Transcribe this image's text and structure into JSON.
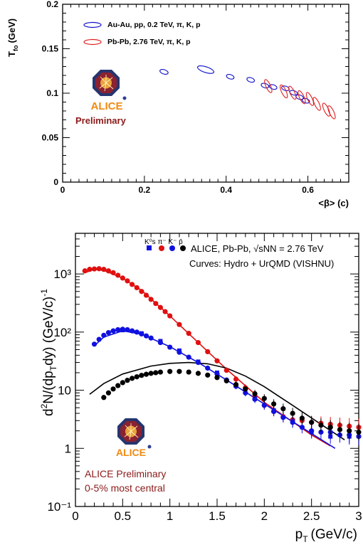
{
  "chart_data": [
    {
      "type": "scatter",
      "ylabel": "T",
      "ylabel_sub": "fo",
      "ylabel_unit": "(GeV)",
      "xlabel": "<β> (c)",
      "xlim": [
        0,
        0.7
      ],
      "ylim": [
        0,
        0.2
      ],
      "x_ticks": [
        "0",
        "0.2",
        "0.4",
        "0.6"
      ],
      "y_ticks": [
        "0",
        "0.05",
        "0.1",
        "0.15",
        "0.2"
      ],
      "legend_position": "top-left",
      "series": [
        {
          "name": "Au-Au, pp, 0.2 TeV, π, K, p",
          "color": "#1010c8",
          "marker": "ellipse",
          "points": [
            {
              "x": 0.248,
              "y": 0.124
            },
            {
              "x": 0.35,
              "y": 0.1265
            },
            {
              "x": 0.41,
              "y": 0.1185
            },
            {
              "x": 0.46,
              "y": 0.115
            },
            {
              "x": 0.495,
              "y": 0.1085
            },
            {
              "x": 0.515,
              "y": 0.107
            },
            {
              "x": 0.545,
              "y": 0.1055
            },
            {
              "x": 0.565,
              "y": 0.1005
            },
            {
              "x": 0.58,
              "y": 0.0955
            },
            {
              "x": 0.595,
              "y": 0.0915
            }
          ]
        },
        {
          "name": "Pb-Pb, 2.76 TeV, π, K, p",
          "color": "#e02020",
          "marker": "ellipse",
          "points": [
            {
              "x": 0.503,
              "y": 0.108
            },
            {
              "x": 0.541,
              "y": 0.102
            },
            {
              "x": 0.562,
              "y": 0.1005
            },
            {
              "x": 0.585,
              "y": 0.0955
            },
            {
              "x": 0.605,
              "y": 0.0935
            },
            {
              "x": 0.622,
              "y": 0.088
            },
            {
              "x": 0.645,
              "y": 0.0815
            },
            {
              "x": 0.658,
              "y": 0.0785
            }
          ]
        }
      ],
      "annotation": "Preliminary",
      "logo_text": "ALICE"
    },
    {
      "type": "scatter",
      "xlabel": "p",
      "xlabel_sub": "T",
      "xlabel_unit": "(GeV/c)",
      "ylabel": "d²N/(dp_T dy) (GeV/c)⁻¹",
      "x_ticks": [
        "0",
        "0.5",
        "1",
        "1.5",
        "2",
        "2.5",
        "3"
      ],
      "xlim": [
        0,
        3
      ],
      "y_scale": "log",
      "ylim": [
        0.1,
        5000
      ],
      "y_ticks": [
        "10⁻¹",
        "1",
        "10",
        "10²",
        "10³"
      ],
      "legend_position": "top-right",
      "legend": {
        "particles": "K⁰s π⁻ K⁻ p̄",
        "entry": "ALICE, Pb-Pb, √sNN = 2.76 TeV",
        "curves": "Curves: Hydro + UrQMD (VISHNU)"
      },
      "annotation_lines": [
        "ALICE Preliminary",
        "0-5% most central"
      ],
      "logo_text": "ALICE",
      "series": [
        {
          "name": "π⁻",
          "color": "#e01010",
          "points": [
            [
              0.1,
              1130
            ],
            [
              0.15,
              1200
            ],
            [
              0.2,
              1220
            ],
            [
              0.25,
              1230
            ],
            [
              0.3,
              1200
            ],
            [
              0.35,
              1130
            ],
            [
              0.4,
              1050
            ],
            [
              0.45,
              950
            ],
            [
              0.5,
              850
            ],
            [
              0.55,
              760
            ],
            [
              0.6,
              660
            ],
            [
              0.65,
              580
            ],
            [
              0.7,
              500
            ],
            [
              0.75,
              430
            ],
            [
              0.8,
              365
            ],
            [
              0.85,
              310
            ],
            [
              0.9,
              265
            ],
            [
              0.95,
              225
            ],
            [
              1.0,
              190
            ],
            [
              1.1,
              135
            ],
            [
              1.2,
              95
            ],
            [
              1.3,
              66
            ],
            [
              1.4,
              46
            ],
            [
              1.5,
              32
            ],
            [
              1.6,
              22
            ],
            [
              1.7,
              15.5
            ],
            [
              1.8,
              11
            ],
            [
              1.9,
              7.8
            ],
            [
              2.0,
              5.5
            ],
            [
              2.1,
              4.3
            ],
            [
              2.2,
              3.5
            ],
            [
              2.3,
              3.1
            ],
            [
              2.4,
              3.0
            ],
            [
              2.5,
              2.8
            ],
            [
              2.6,
              2.7
            ],
            [
              2.7,
              2.6
            ],
            [
              2.8,
              2.5
            ],
            [
              2.9,
              2.4
            ],
            [
              3.0,
              2.3
            ]
          ],
          "curve": [
            [
              0.1,
              1050
            ],
            [
              0.2,
              1200
            ],
            [
              0.3,
              1150
            ],
            [
              0.5,
              850
            ],
            [
              0.7,
              520
            ],
            [
              1.0,
              190
            ],
            [
              1.3,
              66
            ],
            [
              1.6,
              23
            ],
            [
              2.0,
              6.2
            ],
            [
              2.5,
              1.7
            ],
            [
              2.7,
              1.1
            ]
          ]
        },
        {
          "name": "K⁻",
          "color": "#1010e0",
          "points": [
            [
              0.2,
              62
            ],
            [
              0.25,
              75
            ],
            [
              0.3,
              88
            ],
            [
              0.35,
              98
            ],
            [
              0.4,
              105
            ],
            [
              0.45,
              110
            ],
            [
              0.5,
              112
            ],
            [
              0.55,
              110
            ],
            [
              0.6,
              105
            ],
            [
              0.65,
              100
            ],
            [
              0.7,
              93
            ],
            [
              0.75,
              86
            ],
            [
              0.8,
              79
            ],
            [
              0.9,
              66
            ],
            [
              1.0,
              55
            ],
            [
              1.1,
              45
            ],
            [
              1.2,
              37
            ],
            [
              1.3,
              30
            ],
            [
              1.4,
              24
            ],
            [
              1.5,
              19
            ],
            [
              1.6,
              15
            ],
            [
              1.7,
              11.7
            ],
            [
              1.8,
              9.0
            ],
            [
              1.9,
              7.0
            ],
            [
              2.0,
              5.5
            ],
            [
              2.1,
              4.3
            ],
            [
              2.2,
              3.4
            ],
            [
              2.3,
              2.8
            ],
            [
              2.4,
              2.3
            ],
            [
              2.5,
              2.0
            ],
            [
              2.6,
              1.9
            ],
            [
              2.7,
              1.9
            ],
            [
              2.8,
              1.7
            ],
            [
              2.9,
              1.7
            ],
            [
              3.0,
              1.6
            ]
          ],
          "curve": [
            [
              0.2,
              58
            ],
            [
              0.3,
              82
            ],
            [
              0.5,
              105
            ],
            [
              0.7,
              92
            ],
            [
              1.0,
              56
            ],
            [
              1.3,
              30
            ],
            [
              1.6,
              15
            ],
            [
              2.0,
              5.8
            ],
            [
              2.5,
              1.8
            ],
            [
              2.75,
              1.0
            ]
          ]
        },
        {
          "name": "K⁰s",
          "color": "#1010e0",
          "points": [
            [
              0.5,
              108
            ],
            [
              0.7,
              95
            ],
            [
              0.9,
              70
            ],
            [
              1.1,
              48
            ],
            [
              1.3,
              31
            ],
            [
              1.5,
              20
            ],
            [
              1.7,
              12
            ],
            [
              1.9,
              7.2
            ],
            [
              2.1,
              4.5
            ],
            [
              2.3,
              2.9
            ],
            [
              2.5,
              1.9
            ],
            [
              2.7,
              1.6
            ],
            [
              2.9,
              1.6
            ]
          ]
        },
        {
          "name": "p̄",
          "color": "#000000",
          "points": [
            [
              0.3,
              7.5
            ],
            [
              0.35,
              9
            ],
            [
              0.4,
              10.5
            ],
            [
              0.45,
              12
            ],
            [
              0.5,
              13.5
            ],
            [
              0.55,
              14.8
            ],
            [
              0.6,
              16
            ],
            [
              0.65,
              17
            ],
            [
              0.7,
              18
            ],
            [
              0.75,
              18.8
            ],
            [
              0.8,
              19.5
            ],
            [
              0.85,
              20
            ],
            [
              0.9,
              20.5
            ],
            [
              1.0,
              21
            ],
            [
              1.1,
              21
            ],
            [
              1.2,
              20.5
            ],
            [
              1.3,
              19.5
            ],
            [
              1.4,
              18.2
            ],
            [
              1.5,
              16.5
            ],
            [
              1.6,
              14.5
            ],
            [
              1.7,
              12.5
            ],
            [
              1.8,
              10.5
            ],
            [
              1.9,
              8.7
            ],
            [
              2.0,
              7.2
            ],
            [
              2.1,
              5.8
            ],
            [
              2.2,
              4.8
            ],
            [
              2.3,
              4.0
            ],
            [
              2.4,
              3.3
            ],
            [
              2.5,
              2.8
            ],
            [
              2.6,
              2.5
            ],
            [
              2.7,
              2.3
            ],
            [
              2.8,
              2.1
            ],
            [
              2.9,
              2.0
            ],
            [
              3.0,
              1.9
            ]
          ],
          "curve": [
            [
              0.15,
              8.5
            ],
            [
              0.3,
              13
            ],
            [
              0.5,
              19
            ],
            [
              0.8,
              26
            ],
            [
              1.0,
              29
            ],
            [
              1.2,
              30
            ],
            [
              1.4,
              28.5
            ],
            [
              1.6,
              24
            ],
            [
              1.8,
              17.5
            ],
            [
              2.0,
              11.5
            ],
            [
              2.3,
              5.5
            ],
            [
              2.6,
              2.6
            ],
            [
              2.85,
              1.4
            ]
          ]
        }
      ]
    }
  ]
}
